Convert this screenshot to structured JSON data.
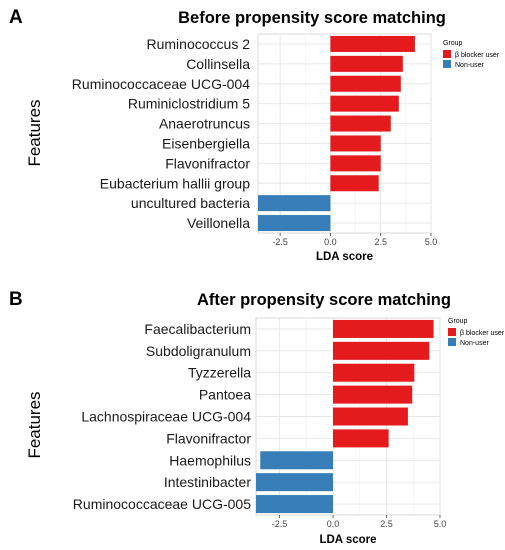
{
  "chart_data": [
    {
      "type": "bar",
      "orientation": "horizontal",
      "panel_label": "A",
      "title": "Before propensity score matching",
      "xlabel": "LDA score",
      "ylabel": "Features",
      "categories": [
        "Ruminococcus 2",
        "Collinsella",
        "Ruminococcaceae UCG-004",
        "Ruminiclostridium 5",
        "Anaerotruncus",
        "Eisenbergiella",
        "Flavonifractor",
        "Eubacterium hallii group",
        "uncultured bacteria",
        "Veillonella"
      ],
      "values": [
        4.2,
        3.6,
        3.5,
        3.4,
        3.0,
        2.5,
        2.5,
        2.4,
        -3.6,
        -3.6
      ],
      "groups": [
        "β blocker user",
        "β blocker user",
        "β blocker user",
        "β blocker user",
        "β blocker user",
        "β blocker user",
        "β blocker user",
        "β blocker user",
        "Non-user",
        "Non-user"
      ],
      "xlim": [
        -3.6,
        5.0
      ],
      "xticks": [
        -2.5,
        0.0,
        2.5,
        5.0
      ],
      "xtick_labels": [
        "-2.5",
        "0.0",
        "2.5",
        "5.0"
      ],
      "grid": true,
      "legend": {
        "title": "Group",
        "entries": [
          "β blocker user",
          "Non-user"
        ],
        "position": "right"
      }
    },
    {
      "type": "bar",
      "orientation": "horizontal",
      "panel_label": "B",
      "title": "After propensity score matching",
      "xlabel": "LDA score",
      "ylabel": "Features",
      "categories": [
        "Faecalibacterium",
        "Subdoligranulum",
        "Tyzzerella",
        "Pantoea",
        "Lachnospiraceae UCG-004",
        "Flavonifractor",
        "Haemophilus",
        "Intestinibacter",
        "Ruminococcaceae UCG-005"
      ],
      "values": [
        4.7,
        4.5,
        3.8,
        3.7,
        3.5,
        2.6,
        -3.4,
        -3.6,
        -3.6
      ],
      "groups": [
        "β blocker user",
        "β blocker user",
        "β blocker user",
        "β blocker user",
        "β blocker user",
        "β blocker user",
        "Non-user",
        "Non-user",
        "Non-user"
      ],
      "xlim": [
        -3.6,
        5.0
      ],
      "xticks": [
        -2.5,
        0.0,
        2.5,
        5.0
      ],
      "xtick_labels": [
        "-2.5",
        "0.0",
        "2.5",
        "5.0"
      ],
      "grid": true,
      "legend": {
        "title": "Group",
        "entries": [
          "β blocker user",
          "Non-user"
        ],
        "position": "right"
      }
    }
  ],
  "colors": {
    "β blocker user": "#e41a1c",
    "Non-user": "#377eb8"
  }
}
